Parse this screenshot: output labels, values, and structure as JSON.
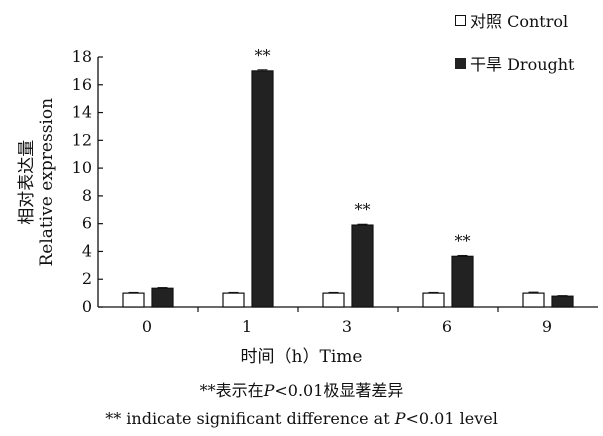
{
  "legend": [
    {
      "label": "对照 Control",
      "color": "#ffffff"
    },
    {
      "label": "干旱 Drought",
      "color": "#222222"
    }
  ],
  "axes": {
    "ylabel_cn": "相对表达量",
    "ylabel_en": "Relative expression",
    "xlabel": "时间（h）Time"
  },
  "footnote": {
    "cn": "**表示在P<0.01极显著差异",
    "en": "** indicate significant difference at P<0.01 level"
  },
  "chart_data": {
    "type": "bar",
    "categories": [
      "0",
      "1",
      "3",
      "6",
      "9"
    ],
    "series": [
      {
        "name": "对照 Control",
        "values": [
          1.0,
          1.0,
          1.0,
          1.0,
          1.0
        ],
        "errors": [
          0.05,
          0.05,
          0.05,
          0.05,
          0.07
        ],
        "color": "#ffffff"
      },
      {
        "name": "干旱 Drought",
        "values": [
          1.35,
          17.0,
          5.9,
          3.65,
          0.78
        ],
        "errors": [
          0.05,
          0.08,
          0.06,
          0.06,
          0.04
        ],
        "color": "#222222"
      }
    ],
    "annotations": [
      "",
      "**",
      "**",
      "**",
      ""
    ],
    "xlabel": "时间（h）Time",
    "ylabel": "相对表达量 Relative expression",
    "ylim": [
      0,
      18
    ],
    "yticks": [
      0,
      2,
      4,
      6,
      8,
      10,
      12,
      14,
      16,
      18
    ],
    "grid": false,
    "legend_position": "top-right"
  }
}
